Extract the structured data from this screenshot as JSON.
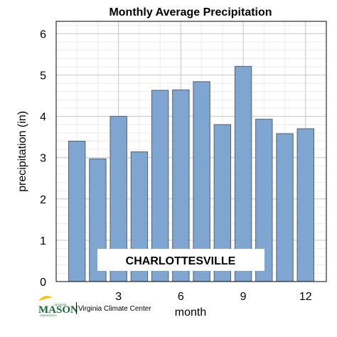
{
  "colors": {
    "bar_fill": "#7fa6d0",
    "bar_stroke": "#55606d",
    "plot_bg": "#ffffff",
    "grid_major": "#c8c8c8",
    "grid_minor": "#ececec",
    "frame": "#000000",
    "logo_green": "#1a6a3a",
    "logo_gold": "#f5c400"
  },
  "chart_data": {
    "type": "bar",
    "title": "Monthly Average Precipitation",
    "xlabel": "month",
    "ylabel": "precipitation (in)",
    "categories": [
      1,
      2,
      3,
      4,
      5,
      6,
      7,
      8,
      9,
      10,
      11,
      12
    ],
    "values": [
      3.4,
      2.97,
      4.0,
      3.14,
      4.63,
      4.64,
      4.84,
      3.8,
      5.21,
      3.93,
      3.58,
      3.7
    ],
    "xlim": [
      0,
      13
    ],
    "ylim": [
      0,
      6.3
    ],
    "xticks": [
      3,
      6,
      9,
      12
    ],
    "yticks": [
      0,
      1,
      2,
      3,
      4,
      5,
      6
    ],
    "grid": true,
    "annotation": "CHARLOTTESVILLE"
  },
  "logo": {
    "word": "MASON",
    "small_top": "GEORGE",
    "small_bottom": "UNIVERSITY",
    "center_name": "Virginia Climate Center",
    "icon": "gmu-logo-icon"
  }
}
